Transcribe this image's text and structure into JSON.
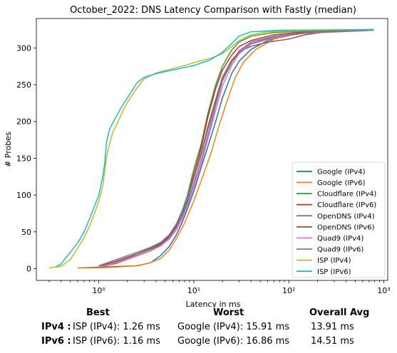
{
  "chart_data": {
    "type": "line",
    "title": "October_2022: DNS Latency Comparison with Fastly (median)",
    "xlabel": "Latency in ms",
    "ylabel": "# Probes",
    "x_scale": "log",
    "xlim": [
      0.22,
      1100
    ],
    "ylim": [
      -16,
      340
    ],
    "x_ticks": [
      1,
      10,
      100,
      1000
    ],
    "x_tick_labels": [
      "10⁰",
      "10¹",
      "10²",
      "10³"
    ],
    "y_ticks": [
      0,
      50,
      100,
      150,
      200,
      250,
      300
    ],
    "legend_position": "lower-right",
    "grid": false,
    "series": [
      {
        "name": "Google (IPv4)",
        "color": "#1f77b4",
        "points": [
          [
            0.6,
            1
          ],
          [
            1.0,
            2
          ],
          [
            1.6,
            3
          ],
          [
            2.6,
            4
          ],
          [
            3.5,
            8
          ],
          [
            4.5,
            18
          ],
          [
            5.5,
            30
          ],
          [
            6.5,
            45
          ],
          [
            7.5,
            62
          ],
          [
            8.5,
            80
          ],
          [
            10,
            105
          ],
          [
            12,
            138
          ],
          [
            14,
            165
          ],
          [
            17,
            200
          ],
          [
            20,
            232
          ],
          [
            25,
            265
          ],
          [
            30,
            282
          ],
          [
            40,
            298
          ],
          [
            60,
            310
          ],
          [
            100,
            318
          ],
          [
            200,
            322
          ],
          [
            500,
            324
          ],
          [
            780,
            325
          ]
        ]
      },
      {
        "name": "Google (IPv6)",
        "color": "#ff7f0e",
        "points": [
          [
            0.6,
            1
          ],
          [
            1.0,
            1
          ],
          [
            1.5,
            2
          ],
          [
            2.5,
            4
          ],
          [
            3.5,
            8
          ],
          [
            4.5,
            14
          ],
          [
            5.5,
            25
          ],
          [
            6.5,
            40
          ],
          [
            8,
            62
          ],
          [
            10,
            92
          ],
          [
            12,
            120
          ],
          [
            15,
            155
          ],
          [
            18,
            190
          ],
          [
            22,
            225
          ],
          [
            27,
            258
          ],
          [
            33,
            280
          ],
          [
            45,
            298
          ],
          [
            70,
            312
          ],
          [
            120,
            319
          ],
          [
            250,
            322
          ],
          [
            780,
            324
          ]
        ]
      },
      {
        "name": "Cloudflare (IPv4)",
        "color": "#2ca02c",
        "points": [
          [
            1.0,
            2
          ],
          [
            1.5,
            8
          ],
          [
            2.5,
            20
          ],
          [
            3.5,
            28
          ],
          [
            4.5,
            35
          ],
          [
            5.5,
            45
          ],
          [
            6.5,
            60
          ],
          [
            7.5,
            78
          ],
          [
            8.5,
            98
          ],
          [
            10,
            135
          ],
          [
            12,
            170
          ],
          [
            14,
            210
          ],
          [
            17,
            250
          ],
          [
            20,
            275
          ],
          [
            25,
            297
          ],
          [
            30,
            308
          ],
          [
            40,
            316
          ],
          [
            70,
            321
          ],
          [
            150,
            323
          ],
          [
            780,
            325
          ]
        ]
      },
      {
        "name": "Cloudflare (IPv6)",
        "color": "#d62728",
        "points": [
          [
            1.0,
            2
          ],
          [
            1.5,
            7
          ],
          [
            2.5,
            17
          ],
          [
            3.5,
            25
          ],
          [
            4.5,
            33
          ],
          [
            5.5,
            43
          ],
          [
            6.5,
            57
          ],
          [
            7.5,
            74
          ],
          [
            8.5,
            93
          ],
          [
            10,
            128
          ],
          [
            12,
            165
          ],
          [
            14,
            205
          ],
          [
            17,
            245
          ],
          [
            20,
            270
          ],
          [
            25,
            290
          ],
          [
            30,
            302
          ],
          [
            40,
            310
          ],
          [
            70,
            318
          ],
          [
            150,
            322
          ],
          [
            780,
            324
          ]
        ]
      },
      {
        "name": "OpenDNS (IPv4)",
        "color": "#9467bd",
        "points": [
          [
            1.0,
            3
          ],
          [
            1.5,
            9
          ],
          [
            2.5,
            18
          ],
          [
            3.5,
            25
          ],
          [
            4.5,
            32
          ],
          [
            5.5,
            42
          ],
          [
            6.5,
            55
          ],
          [
            7.5,
            70
          ],
          [
            8.5,
            88
          ],
          [
            10,
            115
          ],
          [
            12,
            148
          ],
          [
            14,
            180
          ],
          [
            17,
            222
          ],
          [
            20,
            255
          ],
          [
            25,
            280
          ],
          [
            30,
            296
          ],
          [
            40,
            308
          ],
          [
            70,
            316
          ],
          [
            150,
            321
          ],
          [
            780,
            324
          ]
        ]
      },
      {
        "name": "OpenDNS (IPv6)",
        "color": "#8c564b",
        "points": [
          [
            1.0,
            3
          ],
          [
            1.5,
            10
          ],
          [
            2.5,
            20
          ],
          [
            3.5,
            27
          ],
          [
            4.5,
            34
          ],
          [
            5.5,
            44
          ],
          [
            6.5,
            58
          ],
          [
            7.5,
            74
          ],
          [
            8.5,
            92
          ],
          [
            10,
            122
          ],
          [
            12,
            158
          ],
          [
            14,
            192
          ],
          [
            17,
            230
          ],
          [
            20,
            260
          ],
          [
            25,
            283
          ],
          [
            30,
            295
          ],
          [
            40,
            302
          ],
          [
            60,
            308
          ],
          [
            100,
            312
          ],
          [
            150,
            318
          ],
          [
            250,
            322
          ],
          [
            780,
            324
          ]
        ]
      },
      {
        "name": "Quad9 (IPv4)",
        "color": "#e377c2",
        "points": [
          [
            1.0,
            2
          ],
          [
            1.5,
            8
          ],
          [
            2.5,
            17
          ],
          [
            3.5,
            24
          ],
          [
            4.5,
            31
          ],
          [
            5.5,
            40
          ],
          [
            6.5,
            52
          ],
          [
            7.5,
            66
          ],
          [
            8.5,
            84
          ],
          [
            10,
            110
          ],
          [
            12,
            142
          ],
          [
            14,
            175
          ],
          [
            17,
            215
          ],
          [
            20,
            248
          ],
          [
            25,
            276
          ],
          [
            30,
            292
          ],
          [
            40,
            305
          ],
          [
            70,
            314
          ],
          [
            150,
            320
          ],
          [
            780,
            324
          ]
        ]
      },
      {
        "name": "Quad9 (IPv6)",
        "color": "#7f7f7f",
        "points": [
          [
            1.0,
            4
          ],
          [
            1.5,
            12
          ],
          [
            2.5,
            22
          ],
          [
            3.5,
            29
          ],
          [
            4.5,
            36
          ],
          [
            5.5,
            46
          ],
          [
            6.5,
            60
          ],
          [
            7.5,
            76
          ],
          [
            8.5,
            94
          ],
          [
            10,
            122
          ],
          [
            12,
            155
          ],
          [
            14,
            188
          ],
          [
            17,
            226
          ],
          [
            20,
            257
          ],
          [
            25,
            280
          ],
          [
            30,
            294
          ],
          [
            40,
            306
          ],
          [
            70,
            315
          ],
          [
            150,
            320
          ],
          [
            780,
            324
          ]
        ]
      },
      {
        "name": "ISP (IPv4)",
        "color": "#bcbd22",
        "points": [
          [
            0.3,
            1
          ],
          [
            0.4,
            3
          ],
          [
            0.5,
            12
          ],
          [
            0.6,
            28
          ],
          [
            0.7,
            42
          ],
          [
            0.8,
            58
          ],
          [
            0.9,
            75
          ],
          [
            1.0,
            92
          ],
          [
            1.1,
            112
          ],
          [
            1.2,
            150
          ],
          [
            1.26,
            163
          ],
          [
            1.4,
            185
          ],
          [
            1.6,
            200
          ],
          [
            1.8,
            215
          ],
          [
            2.0,
            226
          ],
          [
            2.5,
            245
          ],
          [
            3.0,
            258
          ],
          [
            4.0,
            266
          ],
          [
            6.0,
            272
          ],
          [
            8.0,
            276
          ],
          [
            10,
            280
          ],
          [
            15,
            286
          ],
          [
            20,
            292
          ],
          [
            30,
            310
          ],
          [
            40,
            318
          ],
          [
            60,
            322
          ],
          [
            100,
            323
          ],
          [
            300,
            324
          ],
          [
            780,
            325
          ]
        ]
      },
      {
        "name": "ISP (IPv6)",
        "color": "#17becf",
        "points": [
          [
            0.35,
            2
          ],
          [
            0.4,
            6
          ],
          [
            0.45,
            15
          ],
          [
            0.5,
            22
          ],
          [
            0.6,
            35
          ],
          [
            0.7,
            50
          ],
          [
            0.8,
            68
          ],
          [
            0.9,
            85
          ],
          [
            1.0,
            100
          ],
          [
            1.1,
            125
          ],
          [
            1.16,
            145
          ],
          [
            1.2,
            170
          ],
          [
            1.3,
            190
          ],
          [
            1.5,
            205
          ],
          [
            1.7,
            218
          ],
          [
            2.0,
            232
          ],
          [
            2.5,
            252
          ],
          [
            3.0,
            260
          ],
          [
            4.0,
            265
          ],
          [
            6.0,
            270
          ],
          [
            10,
            276
          ],
          [
            15,
            284
          ],
          [
            20,
            294
          ],
          [
            25,
            306
          ],
          [
            30,
            316
          ],
          [
            40,
            322
          ],
          [
            80,
            324
          ],
          [
            780,
            325
          ]
        ]
      }
    ]
  },
  "summary": {
    "headers": {
      "best": "Best",
      "worst": "Worst",
      "avg": "Overall Avg"
    },
    "rows": [
      {
        "label": "IPv4 :",
        "best": "ISP (IPv4): 1.26 ms",
        "worst": "Google (IPv4): 15.91 ms",
        "avg": "13.91 ms"
      },
      {
        "label": "IPv6 :",
        "best": "ISP (IPv6): 1.16 ms",
        "worst": "Google (IPv6): 16.86 ms",
        "avg": "14.51 ms"
      }
    ]
  }
}
